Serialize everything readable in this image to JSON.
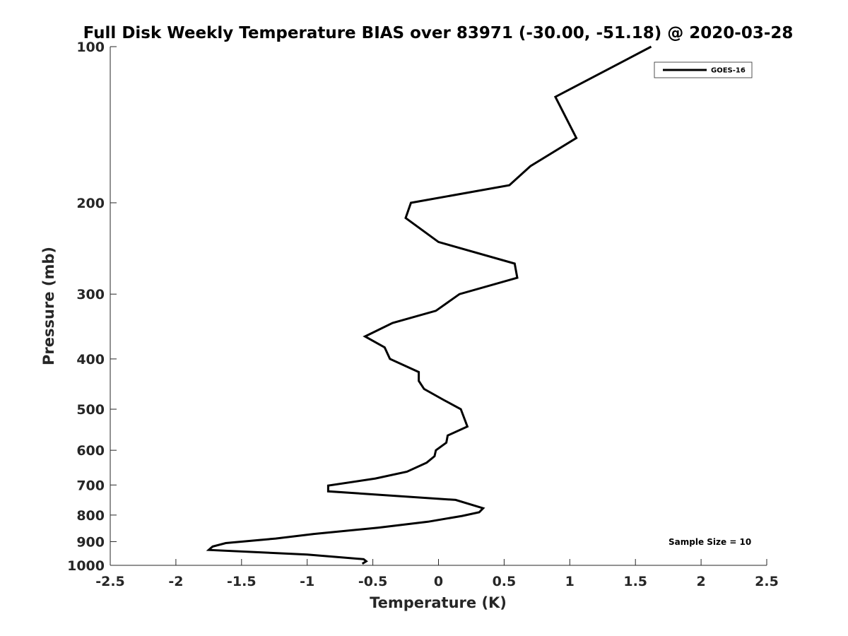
{
  "chart_data": {
    "type": "line",
    "title": "Full Disk Weekly Temperature BIAS over 83971 (-30.00, -51.18) @ 2020-03-28",
    "xlabel": "Temperature (K)",
    "ylabel": "Pressure (mb)",
    "xlim": [
      -2.5,
      2.5
    ],
    "ylim": [
      100,
      1000
    ],
    "y_scale": "log",
    "y_reversed": true,
    "grid": false,
    "legend_position": "top-right",
    "x_ticks": [
      -2.5,
      -2,
      -1.5,
      -1,
      -0.5,
      0,
      0.5,
      1,
      1.5,
      2,
      2.5
    ],
    "x_tick_labels": [
      "-2.5",
      "-2",
      "-1.5",
      "-1",
      "-0.5",
      "0",
      "0.5",
      "1",
      "1.5",
      "2",
      "2.5"
    ],
    "y_ticks": [
      100,
      200,
      300,
      400,
      500,
      600,
      700,
      800,
      900,
      1000
    ],
    "y_tick_labels": [
      "100",
      "200",
      "300",
      "400",
      "500",
      "600",
      "700",
      "800",
      "900",
      "1000"
    ],
    "series": [
      {
        "name": "GOES-16",
        "color": "#000000",
        "points": [
          {
            "x": 1.62,
            "y": 100
          },
          {
            "x": 0.89,
            "y": 125
          },
          {
            "x": 1.05,
            "y": 150
          },
          {
            "x": 0.7,
            "y": 170
          },
          {
            "x": 0.54,
            "y": 185
          },
          {
            "x": -0.21,
            "y": 200
          },
          {
            "x": -0.25,
            "y": 214
          },
          {
            "x": 0.0,
            "y": 238
          },
          {
            "x": 0.58,
            "y": 262
          },
          {
            "x": 0.6,
            "y": 279
          },
          {
            "x": 0.16,
            "y": 300
          },
          {
            "x": -0.02,
            "y": 323
          },
          {
            "x": -0.35,
            "y": 341
          },
          {
            "x": -0.56,
            "y": 362
          },
          {
            "x": -0.41,
            "y": 380
          },
          {
            "x": -0.37,
            "y": 400
          },
          {
            "x": -0.15,
            "y": 424
          },
          {
            "x": -0.15,
            "y": 441
          },
          {
            "x": -0.11,
            "y": 457
          },
          {
            "x": 0.04,
            "y": 480
          },
          {
            "x": 0.17,
            "y": 500
          },
          {
            "x": 0.22,
            "y": 540
          },
          {
            "x": 0.07,
            "y": 562
          },
          {
            "x": 0.06,
            "y": 580
          },
          {
            "x": -0.02,
            "y": 600
          },
          {
            "x": -0.03,
            "y": 616
          },
          {
            "x": -0.09,
            "y": 634
          },
          {
            "x": -0.24,
            "y": 660
          },
          {
            "x": -0.48,
            "y": 680
          },
          {
            "x": -0.84,
            "y": 702
          },
          {
            "x": -0.84,
            "y": 720
          },
          {
            "x": 0.13,
            "y": 748
          },
          {
            "x": 0.34,
            "y": 776
          },
          {
            "x": 0.31,
            "y": 790
          },
          {
            "x": 0.18,
            "y": 803
          },
          {
            "x": -0.08,
            "y": 824
          },
          {
            "x": -0.46,
            "y": 846
          },
          {
            "x": -0.95,
            "y": 870
          },
          {
            "x": -1.24,
            "y": 888
          },
          {
            "x": -1.62,
            "y": 906
          },
          {
            "x": -1.72,
            "y": 920
          },
          {
            "x": -1.75,
            "y": 934
          },
          {
            "x": -1.0,
            "y": 953
          },
          {
            "x": -0.57,
            "y": 973
          },
          {
            "x": -0.55,
            "y": 982
          },
          {
            "x": -0.58,
            "y": 993
          }
        ]
      }
    ],
    "annotations": [
      {
        "text": "Sample Size = 10",
        "position": "bottom-right"
      }
    ]
  }
}
